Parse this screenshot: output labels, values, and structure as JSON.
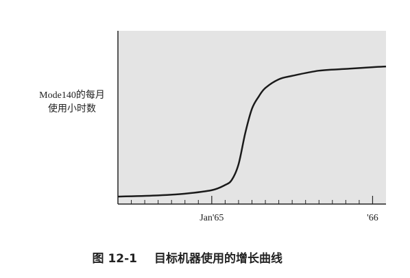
{
  "chart_data": {
    "type": "line",
    "figure_number": "图 12-1",
    "title": "目标机器使用的增长曲线",
    "ylabel": [
      "Mode140的每月",
      "使用小时数"
    ],
    "x": [
      -7,
      -4,
      -2,
      0,
      1,
      1.5,
      2,
      2.5,
      3,
      3.5,
      4,
      5,
      6,
      8,
      10,
      12,
      13
    ],
    "series": [
      {
        "color": "#1a1a1a",
        "values": [
          4.3,
          5,
          6,
          8,
          11,
          14,
          23,
          41,
          55,
          62,
          67,
          72,
          74,
          77,
          78,
          79,
          79.4
        ]
      }
    ],
    "xlim": [
      -7,
      13
    ],
    "ylim": [
      0,
      100
    ],
    "xticks": [
      {
        "value": 0,
        "label": "Jan'65"
      },
      {
        "value": 12,
        "label": "'66"
      }
    ],
    "xminorticks": [
      -6,
      -5,
      -4,
      -3,
      -2,
      -1,
      1,
      2,
      3,
      4,
      5,
      6,
      7,
      8,
      9,
      10,
      11
    ],
    "grid": false,
    "plot_background": "#e4e4e4"
  }
}
